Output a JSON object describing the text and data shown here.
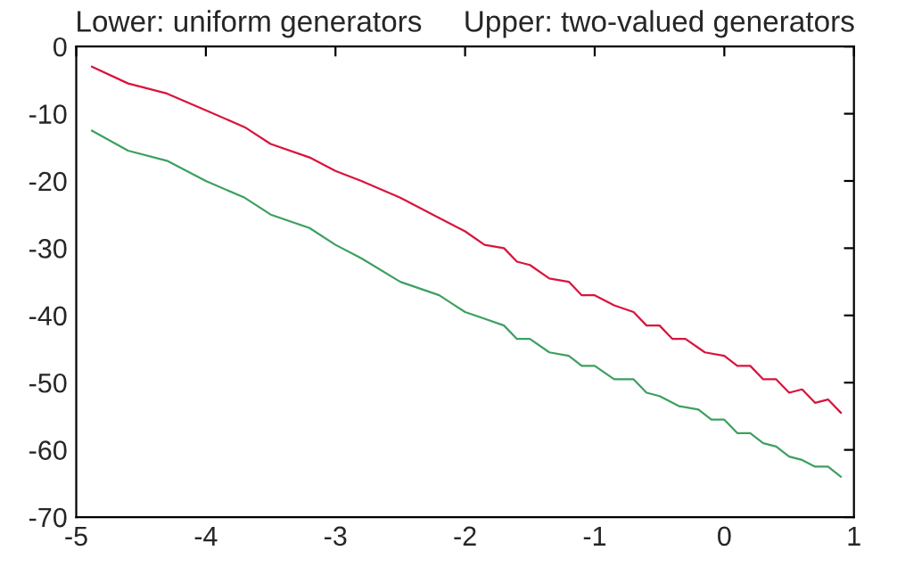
{
  "chart_data": {
    "type": "line",
    "title": "Lower: uniform generators     Upper: two-valued generators",
    "xlim": [
      -5,
      1
    ],
    "xticks": [
      -5,
      -4,
      -3,
      -2,
      -1,
      0,
      1
    ],
    "ylim": [
      -70,
      0
    ],
    "yticks": [
      0,
      -10,
      -20,
      -30,
      -40,
      -50,
      -60,
      -70
    ],
    "grid": false,
    "series": [
      {
        "color": "#d8143c",
        "x": [
          -4.88,
          -4.6,
          -4.3,
          -4.0,
          -3.7,
          -3.5,
          -3.2,
          -3.0,
          -2.8,
          -2.5,
          -2.2,
          -2.0,
          -1.85,
          -1.7,
          -1.6,
          -1.5,
          -1.35,
          -1.2,
          -1.1,
          -1.0,
          -0.85,
          -0.7,
          -0.6,
          -0.5,
          -0.4,
          -0.3,
          -0.15,
          0.0,
          0.1,
          0.2,
          0.3,
          0.4,
          0.5,
          0.6,
          0.7,
          0.8,
          0.9
        ],
        "values": [
          -3,
          -5.5,
          -7,
          -9.5,
          -12,
          -14.5,
          -16.5,
          -18.5,
          -20,
          -22.5,
          -25.5,
          -27.5,
          -29.5,
          -30,
          -32,
          -32.5,
          -34.5,
          -35,
          -37,
          -37,
          -38.5,
          -39.5,
          -41.5,
          -41.5,
          -43.5,
          -43.5,
          -45.5,
          -46,
          -47.5,
          -47.5,
          -49.5,
          -49.5,
          -51.5,
          -51,
          -53,
          -52.5,
          -54.5
        ]
      },
      {
        "color": "#3ca060",
        "x": [
          -4.88,
          -4.6,
          -4.3,
          -4.0,
          -3.7,
          -3.5,
          -3.2,
          -3.0,
          -2.8,
          -2.5,
          -2.2,
          -2.0,
          -1.85,
          -1.7,
          -1.6,
          -1.5,
          -1.35,
          -1.2,
          -1.1,
          -1.0,
          -0.85,
          -0.7,
          -0.6,
          -0.5,
          -0.35,
          -0.2,
          -0.1,
          0.0,
          0.1,
          0.2,
          0.3,
          0.4,
          0.5,
          0.6,
          0.7,
          0.8,
          0.9
        ],
        "values": [
          -12.5,
          -15.5,
          -17,
          -20,
          -22.5,
          -25,
          -27,
          -29.5,
          -31.5,
          -35,
          -37,
          -39.5,
          -40.5,
          -41.5,
          -43.5,
          -43.5,
          -45.5,
          -46,
          -47.5,
          -47.5,
          -49.5,
          -49.5,
          -51.5,
          -52,
          -53.5,
          -54,
          -55.5,
          -55.5,
          -57.5,
          -57.5,
          -59,
          -59.5,
          -61,
          -61.5,
          -62.5,
          -62.5,
          -64
        ]
      }
    ]
  }
}
